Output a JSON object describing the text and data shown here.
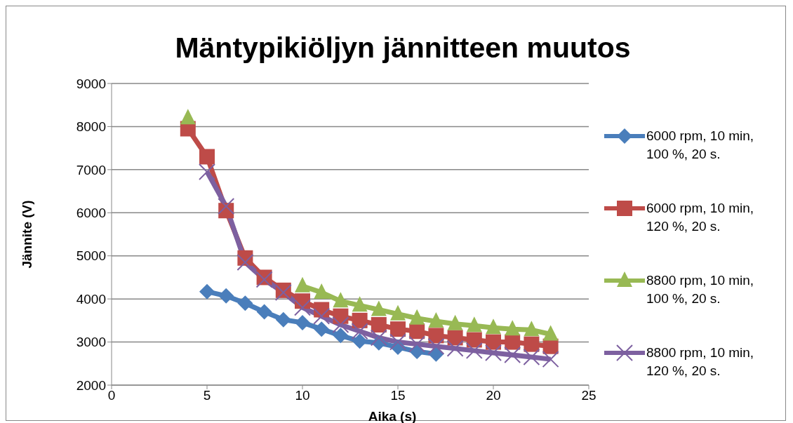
{
  "chart_data": {
    "type": "line",
    "title": "Mäntypikiöljyn jännitteen muutos",
    "xlabel": "Aika (s)",
    "ylabel": "Jännite (V)",
    "xlim": [
      0,
      25
    ],
    "xticks": [
      0,
      5,
      10,
      15,
      20,
      25
    ],
    "ylim": [
      2000,
      9000
    ],
    "yticks": [
      2000,
      3000,
      4000,
      5000,
      6000,
      7000,
      8000,
      9000
    ],
    "grid": "y",
    "legend": "right",
    "series": [
      {
        "name": "6000 rpm, 10 min, 100 %, 20 s.",
        "color": "#4a7ebb",
        "marker": "diamond",
        "x": [
          5,
          6,
          7,
          8,
          9,
          10,
          11,
          12,
          13,
          14,
          15,
          16,
          17
        ],
        "values": [
          4170,
          4070,
          3900,
          3700,
          3520,
          3450,
          3300,
          3150,
          3020,
          2980,
          2880,
          2780,
          2720
        ]
      },
      {
        "name": "6000 rpm, 10 min, 120 %, 20 s.",
        "color": "#be4b48",
        "marker": "square",
        "x": [
          4,
          5,
          6,
          7,
          8,
          9,
          10,
          11,
          12,
          13,
          14,
          15,
          16,
          17,
          18,
          19,
          20,
          21,
          22,
          23
        ],
        "values": [
          7950,
          7300,
          6050,
          4950,
          4500,
          4200,
          3950,
          3750,
          3600,
          3500,
          3400,
          3300,
          3250,
          3150,
          3100,
          3050,
          3000,
          3000,
          2950,
          2900
        ]
      },
      {
        "name": "8800 rpm, 10 min, 100 %, 20 s.",
        "color": "#98b954",
        "marker": "triangle",
        "x": [
          4,
          5,
          6,
          7,
          8,
          9,
          10,
          11,
          12,
          13,
          14,
          15,
          16,
          17,
          18,
          19,
          20,
          21,
          22,
          23
        ],
        "values": [
          8200,
          null,
          null,
          null,
          null,
          null,
          4300,
          4150,
          3950,
          3850,
          3750,
          3650,
          3550,
          3480,
          3420,
          3380,
          3330,
          3300,
          3280,
          3180
        ]
      },
      {
        "name": "8800 rpm, 10 min, 120 %, 20 s.",
        "color": "#7d60a0",
        "marker": "cross",
        "x": [
          5,
          6,
          7,
          8,
          9,
          10,
          11,
          12,
          13,
          14,
          15,
          16,
          17,
          18,
          19,
          20,
          21,
          22,
          23
        ],
        "values": [
          6950,
          6150,
          4850,
          4450,
          4150,
          3800,
          3600,
          3400,
          3250,
          3100,
          3000,
          2950,
          2900,
          2850,
          2800,
          2750,
          2700,
          2650,
          2600
        ]
      }
    ]
  }
}
